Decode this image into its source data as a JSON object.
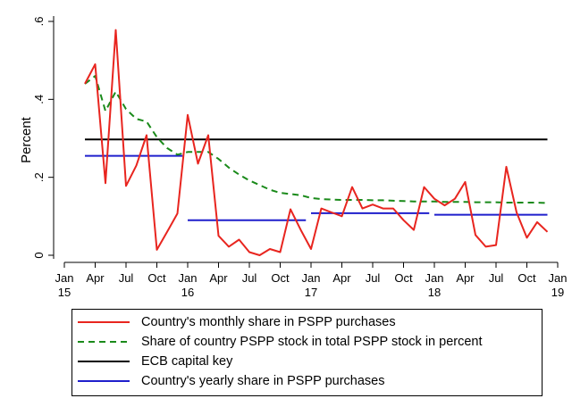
{
  "chart_data": {
    "type": "line",
    "title": "",
    "xlabel": "",
    "ylabel": "Percent",
    "ylim": [
      0,
      0.62
    ],
    "yticks": [
      {
        "value": 0,
        "label": "0"
      },
      {
        "value": 0.2,
        "label": ".2"
      },
      {
        "value": 0.4,
        "label": ".4"
      },
      {
        "value": 0.6,
        "label": ".6"
      }
    ],
    "xlim": [
      0,
      48
    ],
    "xticks": [
      {
        "pos": 0,
        "line1": "Jan",
        "line2": "15"
      },
      {
        "pos": 3,
        "line1": "Apr",
        "line2": ""
      },
      {
        "pos": 6,
        "line1": "Jul",
        "line2": ""
      },
      {
        "pos": 9,
        "line1": "Oct",
        "line2": ""
      },
      {
        "pos": 12,
        "line1": "Jan",
        "line2": "16"
      },
      {
        "pos": 15,
        "line1": "Apr",
        "line2": ""
      },
      {
        "pos": 18,
        "line1": "Jul",
        "line2": ""
      },
      {
        "pos": 21,
        "line1": "Oct",
        "line2": ""
      },
      {
        "pos": 24,
        "line1": "Jan",
        "line2": "17"
      },
      {
        "pos": 27,
        "line1": "Apr",
        "line2": ""
      },
      {
        "pos": 30,
        "line1": "Jul",
        "line2": ""
      },
      {
        "pos": 33,
        "line1": "Oct",
        "line2": ""
      },
      {
        "pos": 36,
        "line1": "Jan",
        "line2": "18"
      },
      {
        "pos": 39,
        "line1": "Apr",
        "line2": ""
      },
      {
        "pos": 42,
        "line1": "Jul",
        "line2": ""
      },
      {
        "pos": 45,
        "line1": "Oct",
        "line2": ""
      },
      {
        "pos": 48,
        "line1": "Jan",
        "line2": "19"
      }
    ],
    "series": [
      {
        "name": "Country's monthly share in PSPP purchases",
        "color": "#e8251f",
        "style": "solid",
        "x": [
          2,
          3,
          4,
          5,
          6,
          7,
          8,
          9,
          10,
          11,
          12,
          13,
          14,
          15,
          16,
          17,
          18,
          19,
          20,
          21,
          22,
          23,
          24,
          25,
          26,
          27,
          28,
          29,
          30,
          31,
          32,
          33,
          34,
          35,
          36,
          37,
          38,
          39,
          40,
          41,
          42,
          43,
          44,
          45,
          46,
          47
        ],
        "values": [
          0.44,
          0.49,
          0.185,
          0.578,
          0.178,
          0.23,
          0.308,
          0.014,
          0.06,
          0.107,
          0.36,
          0.235,
          0.308,
          0.05,
          0.022,
          0.04,
          0.008,
          0.0,
          0.016,
          0.008,
          0.118,
          0.065,
          0.016,
          0.12,
          0.11,
          0.1,
          0.175,
          0.12,
          0.13,
          0.12,
          0.12,
          0.09,
          0.065,
          0.175,
          0.145,
          0.128,
          0.145,
          0.188,
          0.052,
          0.022,
          0.026,
          0.227,
          0.11,
          0.045,
          0.085,
          0.06
        ]
      },
      {
        "name": "Share of country PSPP stock in total PSPP stock in percent",
        "color": "#1a8a1a",
        "style": "dashed",
        "x": [
          2,
          3,
          4,
          5,
          6,
          7,
          8,
          9,
          10,
          11,
          12,
          13,
          14,
          15,
          16,
          17,
          18,
          19,
          20,
          21,
          22,
          23,
          24,
          25,
          26,
          27,
          28,
          29,
          30,
          31,
          32,
          33,
          34,
          35,
          36,
          37,
          38,
          39,
          40,
          41,
          42,
          43,
          44,
          45,
          46,
          47
        ],
        "values": [
          0.44,
          0.46,
          0.37,
          0.42,
          0.375,
          0.35,
          0.343,
          0.303,
          0.275,
          0.258,
          0.265,
          0.265,
          0.265,
          0.247,
          0.225,
          0.207,
          0.192,
          0.18,
          0.168,
          0.16,
          0.157,
          0.154,
          0.147,
          0.144,
          0.143,
          0.142,
          0.142,
          0.142,
          0.141,
          0.141,
          0.14,
          0.139,
          0.138,
          0.138,
          0.138,
          0.137,
          0.137,
          0.137,
          0.136,
          0.136,
          0.136,
          0.135,
          0.135,
          0.135,
          0.135,
          0.134
        ]
      },
      {
        "name": "ECB capital key",
        "color": "#000000",
        "style": "solid",
        "x": [
          2,
          47
        ],
        "values": [
          0.297,
          0.297
        ]
      },
      {
        "name": "Country's yearly share in PSPP purchases",
        "color": "#1f1fcc",
        "style": "segments",
        "segments": [
          {
            "x0": 2,
            "x1": 11.5,
            "value": 0.255
          },
          {
            "x0": 12,
            "x1": 23.5,
            "value": 0.09
          },
          {
            "x0": 24,
            "x1": 35.5,
            "value": 0.108
          },
          {
            "x0": 36,
            "x1": 47,
            "value": 0.104
          }
        ]
      }
    ],
    "legend": {
      "position": "bottom",
      "items": [
        {
          "label": "Country's monthly share in PSPP purchases",
          "color": "#e8251f",
          "style": "solid"
        },
        {
          "label": "Share of country PSPP stock in total PSPP stock in percent",
          "color": "#1a8a1a",
          "style": "dashed"
        },
        {
          "label": "ECB capital key",
          "color": "#000000",
          "style": "solid"
        },
        {
          "label": "Country's yearly share in PSPP purchases",
          "color": "#1f1fcc",
          "style": "solid"
        }
      ]
    }
  }
}
